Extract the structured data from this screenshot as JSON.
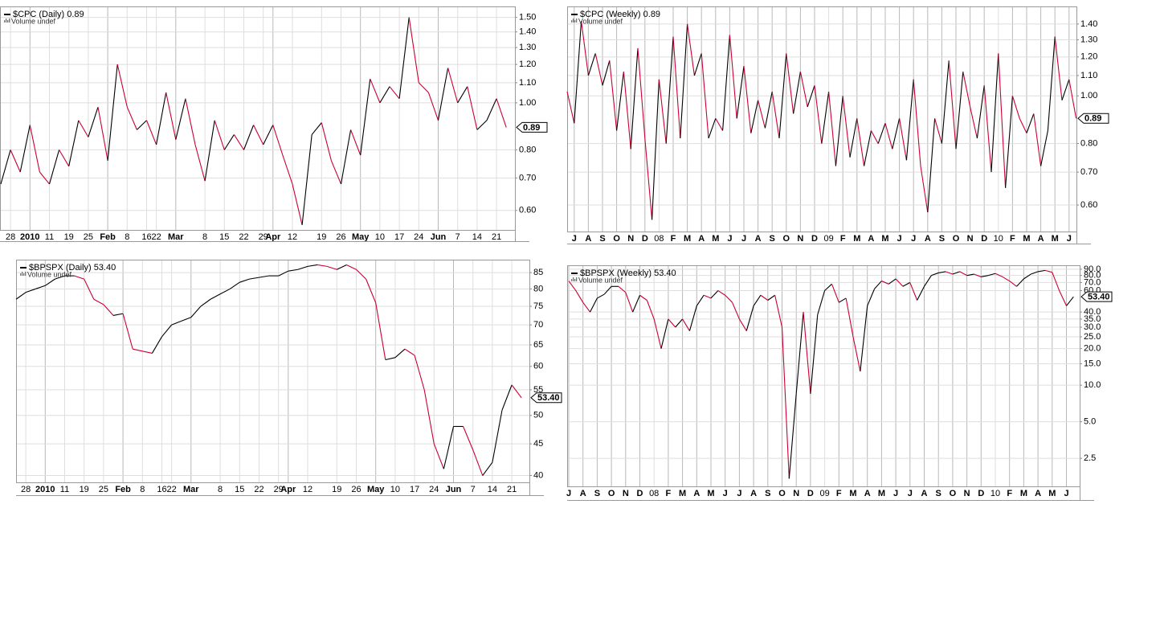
{
  "chart_data": [
    {
      "type": "line",
      "title": "$CPC (Daily) 0.89",
      "subtitle": "Volume undef",
      "log_scale": true,
      "grid": true,
      "up_color": "#000000",
      "down_color": "#cc0033",
      "last_value_label": "0.89",
      "ylim": [
        0.547,
        1.58
      ],
      "yticks": [
        {
          "value": 0.6,
          "label": "0.60"
        },
        {
          "value": 0.7,
          "label": "0.70"
        },
        {
          "value": 0.8,
          "label": "0.80"
        },
        {
          "value": 1.0,
          "label": "1.00"
        },
        {
          "value": 1.1,
          "label": "1.10"
        },
        {
          "value": 1.2,
          "label": "1.20"
        },
        {
          "value": 1.3,
          "label": "1.30"
        },
        {
          "value": 1.4,
          "label": "1.40"
        },
        {
          "value": 1.5,
          "label": "1.50"
        }
      ],
      "categories": [
        null,
        "28",
        null,
        "2010",
        null,
        "11",
        null,
        "19",
        null,
        "25",
        null,
        "Feb",
        null,
        "8",
        null,
        "16",
        "22",
        null,
        "Mar",
        null,
        null,
        "8",
        null,
        "15",
        null,
        "22",
        null,
        "29",
        "Apr",
        null,
        "12",
        null,
        null,
        "19",
        null,
        "26",
        null,
        "May",
        null,
        "10",
        null,
        "17",
        null,
        "24",
        null,
        "Jun",
        null,
        "7",
        null,
        "14",
        null,
        "21",
        null
      ],
      "values": [
        0.68,
        0.8,
        0.72,
        0.9,
        0.72,
        0.68,
        0.8,
        0.74,
        0.92,
        0.85,
        0.98,
        0.76,
        1.2,
        0.98,
        0.88,
        0.92,
        0.82,
        1.05,
        0.84,
        1.02,
        0.82,
        0.69,
        0.92,
        0.8,
        0.86,
        0.8,
        0.9,
        0.82,
        0.9,
        0.78,
        0.68,
        0.56,
        0.86,
        0.91,
        0.76,
        0.68,
        0.88,
        0.78,
        1.12,
        1.0,
        1.08,
        1.02,
        1.5,
        1.1,
        1.05,
        0.92,
        1.18,
        1.0,
        1.08,
        0.88,
        0.92,
        1.02,
        0.89
      ]
    },
    {
      "type": "line",
      "title": "$CPC (Weekly) 0.89",
      "subtitle": "Volume undef",
      "log_scale": true,
      "grid": true,
      "up_color": "#000000",
      "down_color": "#cc0033",
      "last_value_label": "0.89",
      "ylim": [
        0.53,
        1.52
      ],
      "yticks": [
        {
          "value": 0.6,
          "label": "0.60"
        },
        {
          "value": 0.7,
          "label": "0.70"
        },
        {
          "value": 0.8,
          "label": "0.80"
        },
        {
          "value": 1.0,
          "label": "1.00"
        },
        {
          "value": 1.1,
          "label": "1.10"
        },
        {
          "value": 1.2,
          "label": "1.20"
        },
        {
          "value": 1.3,
          "label": "1.30"
        },
        {
          "value": 1.4,
          "label": "1.40"
        }
      ],
      "categories": [
        null,
        "J",
        null,
        "A",
        null,
        "S",
        null,
        "O",
        null,
        "N",
        null,
        "D",
        null,
        "08",
        null,
        "F",
        null,
        "M",
        null,
        "A",
        null,
        "M",
        null,
        "J",
        null,
        "J",
        null,
        "A",
        null,
        "S",
        null,
        "O",
        null,
        "N",
        null,
        "D",
        null,
        "09",
        null,
        "F",
        null,
        "M",
        null,
        "A",
        null,
        "M",
        null,
        "J",
        null,
        "J",
        null,
        "A",
        null,
        "S",
        null,
        "O",
        null,
        "N",
        null,
        "D",
        null,
        "10",
        null,
        "F",
        null,
        "M",
        null,
        "A",
        null,
        "M",
        null,
        "J",
        null
      ],
      "values": [
        1.02,
        0.88,
        1.42,
        1.1,
        1.22,
        1.05,
        1.18,
        0.85,
        1.12,
        0.78,
        1.25,
        0.82,
        0.56,
        1.08,
        0.8,
        1.32,
        0.82,
        1.4,
        1.1,
        1.22,
        0.82,
        0.9,
        0.85,
        1.33,
        0.9,
        1.15,
        0.84,
        0.98,
        0.86,
        1.02,
        0.82,
        1.22,
        0.92,
        1.12,
        0.95,
        1.05,
        0.8,
        1.02,
        0.72,
        1.0,
        0.75,
        0.9,
        0.72,
        0.85,
        0.8,
        0.88,
        0.78,
        0.9,
        0.74,
        1.08,
        0.72,
        0.58,
        0.9,
        0.8,
        1.18,
        0.78,
        1.12,
        0.95,
        0.82,
        1.05,
        0.7,
        1.22,
        0.65,
        1.0,
        0.9,
        0.84,
        0.92,
        0.72,
        0.85,
        1.32,
        0.98,
        1.08,
        0.9
      ]
    },
    {
      "type": "line",
      "title": "$BPSPX (Daily) 53.40",
      "subtitle": "Volume undef",
      "log_scale": true,
      "grid": true,
      "up_color": "#000000",
      "down_color": "#cc0033",
      "last_value_label": "53.40",
      "ylim": [
        39,
        89.2
      ],
      "yticks": [
        40,
        45,
        50,
        55,
        60,
        65,
        70,
        75,
        80,
        85
      ],
      "categories": [
        null,
        "28",
        null,
        "2010",
        null,
        "11",
        null,
        "19",
        null,
        "25",
        null,
        "Feb",
        null,
        "8",
        null,
        "16",
        "22",
        null,
        "Mar",
        null,
        null,
        "8",
        null,
        "15",
        null,
        "22",
        null,
        "29",
        "Apr",
        null,
        "12",
        null,
        null,
        "19",
        null,
        "26",
        null,
        "May",
        null,
        "10",
        null,
        "17",
        null,
        "24",
        null,
        "Jun",
        null,
        "7",
        null,
        "14",
        null,
        "21",
        null
      ],
      "values": [
        77,
        79,
        80,
        81,
        83,
        84,
        84,
        83,
        77,
        75.5,
        72.5,
        73,
        64,
        63.5,
        63,
        67,
        70,
        71,
        72,
        75,
        77,
        78.5,
        80,
        82,
        83,
        83.5,
        84,
        84,
        85.5,
        86,
        87,
        87.5,
        87,
        86,
        87.5,
        86,
        83,
        76,
        61.5,
        62,
        64,
        62.5,
        55,
        45,
        41,
        48,
        48,
        44,
        40,
        42,
        51,
        56,
        53.4
      ]
    },
    {
      "type": "line",
      "title": "$BPSPX (Weekly) 53.40",
      "subtitle": "Volume undef",
      "log_scale": true,
      "grid": true,
      "up_color": "#000000",
      "down_color": "#cc0033",
      "last_value_label": "53.40",
      "ylim": [
        1.47,
        97
      ],
      "yticks": [
        2.5,
        {
          "value": 5,
          "label": "5.0"
        },
        {
          "value": 10,
          "label": "10.0"
        },
        {
          "value": 15,
          "label": "15.0"
        },
        {
          "value": 20,
          "label": "20.0"
        },
        {
          "value": 25,
          "label": "25.0"
        },
        {
          "value": 30,
          "label": "30.0"
        },
        {
          "value": 35,
          "label": "35.0"
        },
        {
          "value": 40,
          "label": "40.0"
        },
        {
          "value": 60,
          "label": "60.0"
        },
        {
          "value": 70,
          "label": "70.0"
        },
        {
          "value": 80,
          "label": "80.0"
        },
        {
          "value": 90,
          "label": "90.0"
        }
      ],
      "categories": [
        "J",
        null,
        "A",
        null,
        "S",
        null,
        "O",
        null,
        "N",
        null,
        "D",
        null,
        "08",
        null,
        "F",
        null,
        "M",
        null,
        "A",
        null,
        "M",
        null,
        "J",
        null,
        "J",
        null,
        "A",
        null,
        "S",
        null,
        "O",
        null,
        "N",
        null,
        "D",
        null,
        "09",
        null,
        "F",
        null,
        "M",
        null,
        "A",
        null,
        "M",
        null,
        "J",
        null,
        "J",
        null,
        "A",
        null,
        "S",
        null,
        "O",
        null,
        "N",
        null,
        "D",
        null,
        "10",
        null,
        "F",
        null,
        "M",
        null,
        "A",
        null,
        "M",
        null,
        "J",
        null
      ],
      "values": [
        72,
        60,
        48,
        40,
        52,
        56,
        65,
        65,
        58,
        40,
        55,
        50,
        35,
        20,
        35,
        30,
        35,
        28,
        45,
        55,
        52,
        60,
        55,
        48,
        35,
        28,
        45,
        55,
        50,
        55,
        30,
        1.7,
        8.5,
        40,
        8.5,
        38,
        60,
        68,
        48,
        52,
        25,
        13,
        45,
        62,
        72,
        68,
        75,
        65,
        70,
        50,
        65,
        80,
        84,
        86,
        82,
        86,
        80,
        82,
        78,
        80,
        83,
        78,
        72,
        65,
        75,
        82,
        86,
        88,
        85,
        60,
        45,
        53.4
      ]
    }
  ]
}
